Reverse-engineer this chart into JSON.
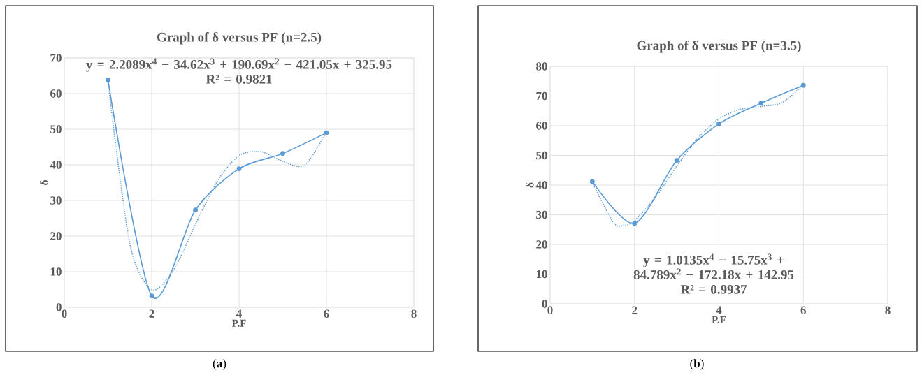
{
  "chart_data": [
    {
      "type": "line",
      "title": "Graph of δ versus PF (n=2.5)",
      "xlabel": "P.F",
      "ylabel": "δ",
      "xlim": [
        0,
        8
      ],
      "xticks": [
        0,
        2,
        4,
        6,
        8
      ],
      "ylim": [
        0,
        70
      ],
      "yticks": [
        0,
        10,
        20,
        30,
        40,
        50,
        60,
        70
      ],
      "grid": true,
      "series": [
        {
          "color": "#5b9bd5",
          "marker": "circle",
          "line_style": "solid",
          "x": [
            1,
            2,
            3,
            4,
            5,
            6
          ],
          "values": [
            63.8,
            3.2,
            27.3,
            38.9,
            43.2,
            49.0
          ]
        },
        {
          "color": "#5b9bd5",
          "marker": "none",
          "line_style": "dotted",
          "x": [
            1,
            1.5,
            2,
            2.5,
            3,
            3.5,
            4,
            4.5,
            5,
            5.5,
            6
          ],
          "values": [
            63.2,
            17.8,
            5.0,
            10.5,
            23.2,
            35.4,
            42.6,
            43.7,
            41.0,
            39.9,
            49.3
          ]
        }
      ],
      "annotations": [
        "y = 2.2089x$^{4}$ − 34.62x$^{3}$ + 190.69x$^{2}$ − 421.05x + 325.95",
        "R² = 0.9821",
        "(**a**)"
      ]
    },
    {
      "type": "line",
      "title": "Graph of δ versus PF (n=3.5)",
      "xlabel": "P.F",
      "ylabel": "δ",
      "xlim": [
        0,
        8
      ],
      "xticks": [
        0,
        2,
        4,
        6,
        8
      ],
      "ylim": [
        0,
        80
      ],
      "yticks": [
        0,
        10,
        20,
        30,
        40,
        50,
        60,
        70,
        80
      ],
      "grid": true,
      "series": [
        {
          "color": "#5b9bd5",
          "marker": "circle",
          "line_style": "solid",
          "x": [
            1,
            2,
            3,
            4,
            5,
            6
          ],
          "values": [
            41.2,
            27.1,
            48.3,
            60.6,
            67.6,
            73.6
          ]
        },
        {
          "color": "#5b9bd5",
          "marker": "none",
          "line_style": "dotted",
          "x": [
            1,
            1.5,
            1.75,
            2,
            2.5,
            3,
            3.5,
            4,
            4.5,
            5,
            5.5,
            6
          ],
          "values": [
            40.8,
            27.4,
            26.4,
            28.0,
            35.9,
            46.4,
            55.8,
            62.3,
            65.5,
            66.5,
            67.8,
            73.8
          ]
        }
      ],
      "annotations": [
        "y = 1.0135x$^{4}$ − 15.75x$^{3}$ + 84.789x$^{2}$ − 172.18x + 142.95",
        "R² = 0.9937",
        "(**b**)"
      ]
    }
  ]
}
